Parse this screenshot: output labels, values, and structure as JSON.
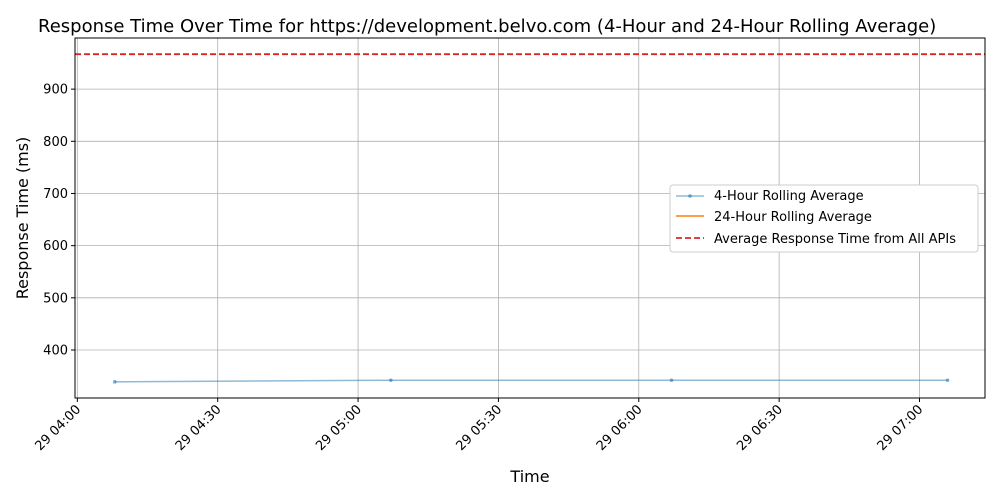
{
  "chart_data": {
    "type": "line",
    "title": "Response Time Over Time for https://development.belvo.com (4-Hour and 24-Hour Rolling Average)",
    "xlabel": "Time",
    "ylabel": "Response Time (ms)",
    "x_ticks": [
      "29 04:00",
      "29 04:30",
      "29 05:00",
      "29 05:30",
      "29 06:00",
      "29 06:30",
      "29 07:00"
    ],
    "x_tick_minutes": [
      0,
      30,
      60,
      90,
      120,
      150,
      180
    ],
    "xlim_minutes": [
      -0.5,
      194
    ],
    "y_ticks": [
      400,
      500,
      600,
      700,
      800,
      900
    ],
    "ylim": [
      308,
      998
    ],
    "grid": true,
    "legend_position": "center-right",
    "series": [
      {
        "name": "4-Hour Rolling Average",
        "color": "#1f77b4",
        "style": "line-markers",
        "x_minutes": [
          8,
          67,
          127,
          186
        ],
        "x_labels": [
          "29 04:08",
          "29 05:07",
          "29 06:07",
          "29 07:06"
        ],
        "values": [
          339,
          342,
          342,
          342
        ]
      },
      {
        "name": "24-Hour Rolling Average",
        "color": "#ff7f0e",
        "style": "line",
        "x_minutes": [],
        "x_labels": [],
        "values": []
      }
    ],
    "reference_lines": [
      {
        "name": "Average Response Time from All APIs",
        "value": 967,
        "color": "#d62728",
        "style": "dashed"
      }
    ]
  }
}
